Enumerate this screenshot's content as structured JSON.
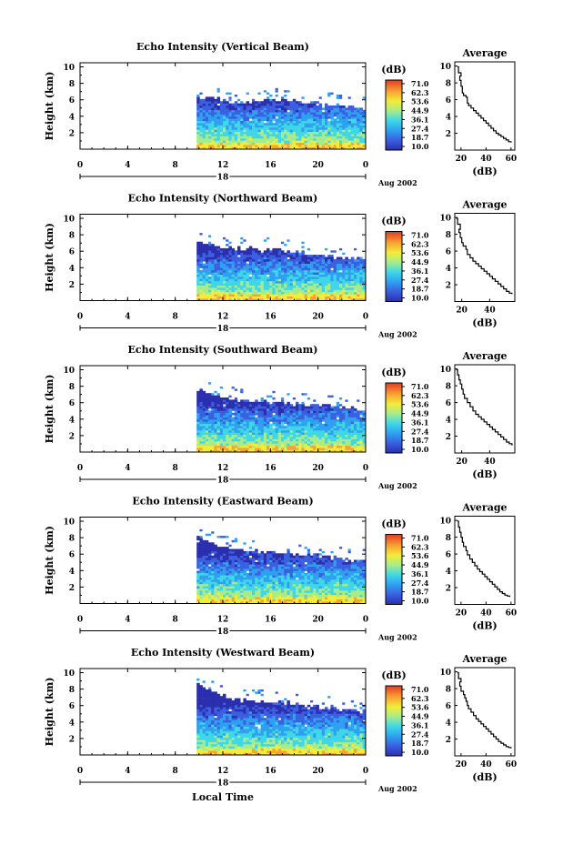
{
  "chart_data": [
    {
      "type": "heatmap",
      "title": "Echo Intensity (Vertical Beam)",
      "ylabel": "Height (km)",
      "xlim": [
        0,
        24
      ],
      "ylim": [
        0,
        10.5
      ],
      "x_ticks": [
        "0",
        "4",
        "8",
        "12",
        "16",
        "20",
        "0"
      ],
      "y_ticks": [
        "2",
        "4",
        "6",
        "8",
        "10"
      ],
      "date_label": "18",
      "month_label": "Aug 2002",
      "colorbar": {
        "unit": "(dB)",
        "levels": [
          "71.0",
          "62.3",
          "53.6",
          "44.9",
          "36.1",
          "27.4",
          "18.7",
          "10.0"
        ]
      },
      "data_start_hour": 9.8,
      "echo_top_km": [
        6.2,
        6.0,
        5.6,
        5.9,
        5.9,
        5.6,
        5.4,
        5.1,
        4.8
      ],
      "avg_profile": {
        "title": "Average",
        "xlabel": "(dB)",
        "x_ticks": [
          "20",
          "40",
          "60"
        ],
        "xlim": [
          15,
          63
        ],
        "points": [
          [
            17,
            9.9
          ],
          [
            18,
            9.2
          ],
          [
            20,
            8.8
          ],
          [
            19,
            8.3
          ],
          [
            20,
            7.6
          ],
          [
            21,
            6.8
          ],
          [
            22,
            6.5
          ],
          [
            24,
            6.3
          ],
          [
            25,
            5.6
          ],
          [
            26,
            5.3
          ],
          [
            28,
            5.0
          ],
          [
            30,
            4.7
          ],
          [
            32,
            4.4
          ],
          [
            34,
            4.1
          ],
          [
            36,
            3.8
          ],
          [
            38,
            3.5
          ],
          [
            40,
            3.2
          ],
          [
            42,
            2.9
          ],
          [
            44,
            2.6
          ],
          [
            46,
            2.3
          ],
          [
            48,
            2.0
          ],
          [
            50,
            1.8
          ],
          [
            52,
            1.6
          ],
          [
            54,
            1.4
          ],
          [
            56,
            1.2
          ],
          [
            58,
            1.0
          ],
          [
            60,
            0.9
          ]
        ]
      }
    },
    {
      "type": "heatmap",
      "title": "Echo Intensity (Northward Beam)",
      "ylabel": "Height (km)",
      "xlim": [
        0,
        24
      ],
      "ylim": [
        0,
        10.5
      ],
      "x_ticks": [
        "0",
        "4",
        "8",
        "12",
        "16",
        "20",
        "0"
      ],
      "y_ticks": [
        "2",
        "4",
        "6",
        "8",
        "10"
      ],
      "date_label": "18",
      "month_label": "Aug 2002",
      "colorbar": {
        "unit": "(dB)",
        "levels": [
          "71.0",
          "62.3",
          "53.6",
          "44.9",
          "36.1",
          "27.4",
          "18.7",
          "10.0"
        ]
      },
      "data_start_hour": 9.8,
      "echo_top_km": [
        7.0,
        6.4,
        6.2,
        6.3,
        6.0,
        5.7,
        5.4,
        5.1,
        4.9
      ],
      "avg_profile": {
        "title": "Average",
        "xlabel": "(dB)",
        "x_ticks": [
          "20",
          "40"
        ],
        "xlim": [
          15,
          58
        ],
        "points": [
          [
            16,
            9.9
          ],
          [
            17,
            9.2
          ],
          [
            19,
            8.6
          ],
          [
            18,
            8.2
          ],
          [
            19,
            7.6
          ],
          [
            20,
            7.0
          ],
          [
            21,
            6.6
          ],
          [
            23,
            6.2
          ],
          [
            24,
            5.6
          ],
          [
            26,
            5.2
          ],
          [
            28,
            4.8
          ],
          [
            30,
            4.5
          ],
          [
            32,
            4.2
          ],
          [
            34,
            3.9
          ],
          [
            36,
            3.6
          ],
          [
            38,
            3.3
          ],
          [
            40,
            3.0
          ],
          [
            42,
            2.7
          ],
          [
            44,
            2.4
          ],
          [
            46,
            2.1
          ],
          [
            48,
            1.8
          ],
          [
            50,
            1.5
          ],
          [
            52,
            1.2
          ],
          [
            54,
            1.0
          ],
          [
            56,
            0.9
          ]
        ]
      }
    },
    {
      "type": "heatmap",
      "title": "Echo Intensity (Southward Beam)",
      "ylabel": "Height (km)",
      "xlim": [
        0,
        24
      ],
      "ylim": [
        0,
        10.5
      ],
      "x_ticks": [
        "0",
        "4",
        "8",
        "12",
        "16",
        "20",
        "0"
      ],
      "y_ticks": [
        "2",
        "4",
        "6",
        "8",
        "10"
      ],
      "date_label": "18",
      "month_label": "Aug 2002",
      "colorbar": {
        "unit": "(dB)",
        "levels": [
          "71.0",
          "62.3",
          "53.6",
          "44.9",
          "36.1",
          "27.4",
          "18.7",
          "10.0"
        ]
      },
      "data_start_hour": 9.8,
      "echo_top_km": [
        7.5,
        6.6,
        6.3,
        6.2,
        6.0,
        5.8,
        5.6,
        5.3,
        5.0
      ],
      "avg_profile": {
        "title": "Average",
        "xlabel": "(dB)",
        "x_ticks": [
          "20",
          "40"
        ],
        "xlim": [
          15,
          58
        ],
        "points": [
          [
            16,
            9.9
          ],
          [
            17,
            9.3
          ],
          [
            18,
            8.7
          ],
          [
            19,
            8.2
          ],
          [
            20,
            7.6
          ],
          [
            21,
            7.0
          ],
          [
            22,
            6.5
          ],
          [
            24,
            6.0
          ],
          [
            26,
            5.5
          ],
          [
            28,
            5.0
          ],
          [
            30,
            4.6
          ],
          [
            32,
            4.3
          ],
          [
            34,
            4.0
          ],
          [
            36,
            3.7
          ],
          [
            38,
            3.4
          ],
          [
            40,
            3.1
          ],
          [
            42,
            2.8
          ],
          [
            44,
            2.5
          ],
          [
            46,
            2.2
          ],
          [
            48,
            1.9
          ],
          [
            50,
            1.6
          ],
          [
            52,
            1.3
          ],
          [
            54,
            1.1
          ],
          [
            56,
            0.9
          ]
        ]
      }
    },
    {
      "type": "heatmap",
      "title": "Echo Intensity (Eastward Beam)",
      "ylabel": "Height (km)",
      "xlim": [
        0,
        24
      ],
      "ylim": [
        0,
        10.5
      ],
      "x_ticks": [
        "0",
        "4",
        "8",
        "12",
        "16",
        "20",
        "0"
      ],
      "y_ticks": [
        "2",
        "4",
        "6",
        "8",
        "10"
      ],
      "date_label": "18",
      "month_label": "Aug 2002",
      "colorbar": {
        "unit": "(dB)",
        "levels": [
          "71.0",
          "62.3",
          "53.6",
          "44.9",
          "36.1",
          "27.4",
          "18.7",
          "10.0"
        ]
      },
      "data_start_hour": 9.8,
      "echo_top_km": [
        8.0,
        6.9,
        6.3,
        6.2,
        6.1,
        5.8,
        5.6,
        5.3,
        5.0
      ],
      "avg_profile": {
        "title": "Average",
        "xlabel": "(dB)",
        "x_ticks": [
          "20",
          "40",
          "60"
        ],
        "xlim": [
          15,
          63
        ],
        "points": [
          [
            17,
            9.9
          ],
          [
            18,
            9.2
          ],
          [
            19,
            8.6
          ],
          [
            20,
            8.0
          ],
          [
            21,
            7.4
          ],
          [
            22,
            6.9
          ],
          [
            24,
            6.4
          ],
          [
            25,
            5.9
          ],
          [
            27,
            5.4
          ],
          [
            29,
            5.0
          ],
          [
            31,
            4.6
          ],
          [
            33,
            4.2
          ],
          [
            35,
            3.9
          ],
          [
            37,
            3.6
          ],
          [
            39,
            3.3
          ],
          [
            41,
            3.0
          ],
          [
            43,
            2.7
          ],
          [
            45,
            2.4
          ],
          [
            47,
            2.1
          ],
          [
            49,
            1.8
          ],
          [
            51,
            1.5
          ],
          [
            53,
            1.3
          ],
          [
            55,
            1.1
          ],
          [
            57,
            1.0
          ],
          [
            59,
            0.9
          ]
        ]
      }
    },
    {
      "type": "heatmap",
      "title": "Echo Intensity (Westward Beam)",
      "ylabel": "Height (km)",
      "xlabel": "Local Time",
      "xlim": [
        0,
        24
      ],
      "ylim": [
        0,
        10.5
      ],
      "x_ticks": [
        "0",
        "4",
        "8",
        "12",
        "16",
        "20",
        "0"
      ],
      "y_ticks": [
        "2",
        "4",
        "6",
        "8",
        "10"
      ],
      "date_label": "18",
      "month_label": "Aug 2002",
      "colorbar": {
        "unit": "(dB)",
        "levels": [
          "71.0",
          "62.3",
          "53.6",
          "44.9",
          "36.1",
          "27.4",
          "18.7",
          "10.0"
        ]
      },
      "data_start_hour": 9.8,
      "echo_top_km": [
        8.5,
        7.3,
        6.6,
        6.4,
        6.3,
        6.0,
        5.7,
        5.4,
        5.1
      ],
      "avg_profile": {
        "title": "Average",
        "xlabel": "(dB)",
        "x_ticks": [
          "20",
          "40",
          "60"
        ],
        "xlim": [
          15,
          63
        ],
        "points": [
          [
            17,
            9.9
          ],
          [
            18,
            9.2
          ],
          [
            20,
            8.8
          ],
          [
            19,
            8.3
          ],
          [
            20,
            7.7
          ],
          [
            22,
            7.3
          ],
          [
            23,
            6.9
          ],
          [
            24,
            6.5
          ],
          [
            25,
            6.0
          ],
          [
            26,
            5.6
          ],
          [
            28,
            5.2
          ],
          [
            30,
            4.8
          ],
          [
            32,
            4.4
          ],
          [
            34,
            4.1
          ],
          [
            36,
            3.8
          ],
          [
            38,
            3.5
          ],
          [
            40,
            3.2
          ],
          [
            42,
            2.9
          ],
          [
            44,
            2.6
          ],
          [
            46,
            2.3
          ],
          [
            48,
            2.0
          ],
          [
            50,
            1.7
          ],
          [
            52,
            1.5
          ],
          [
            54,
            1.3
          ],
          [
            56,
            1.1
          ],
          [
            58,
            1.0
          ],
          [
            60,
            0.9
          ]
        ]
      }
    }
  ]
}
